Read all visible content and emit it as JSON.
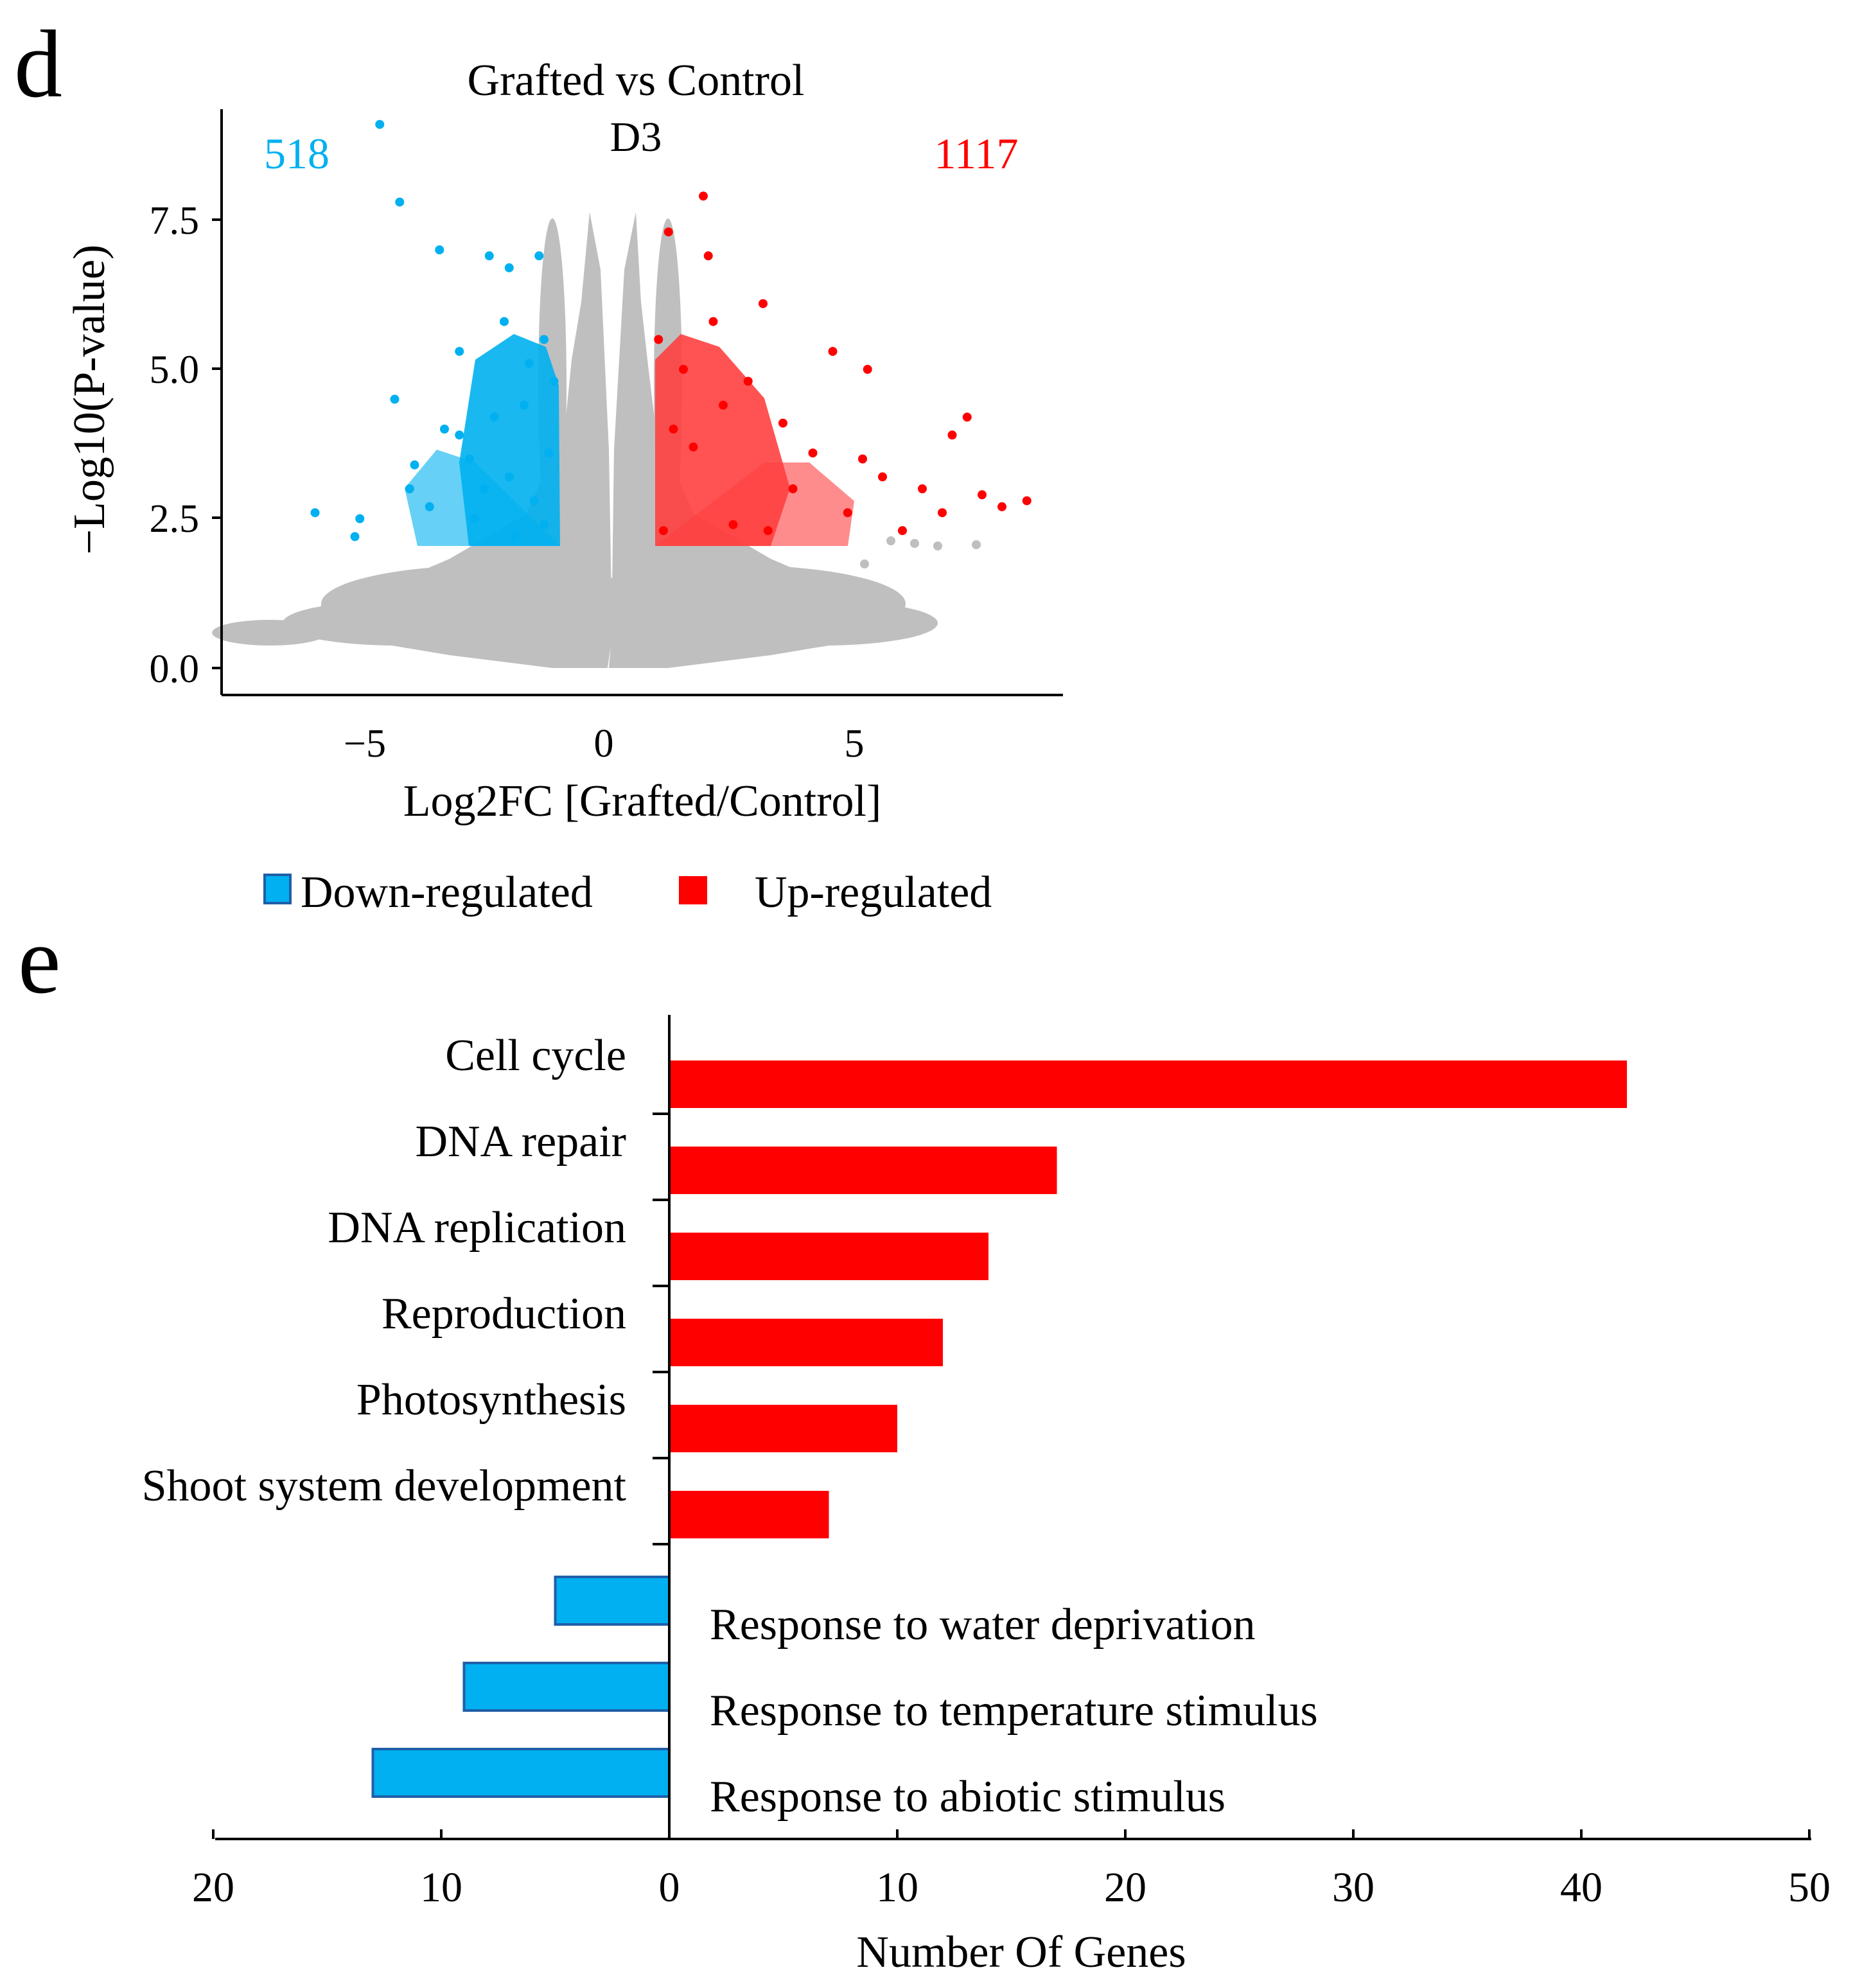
{
  "colors": {
    "down": "#00B0F0",
    "up": "#FF0000",
    "ns": "#BFBFBF",
    "axis": "#000000"
  },
  "chart_data": [
    {
      "panel_label": "d",
      "type": "scatter",
      "title": "Grafted vs Control",
      "subtitle": "D3",
      "xlabel": "Log2FC [Grafted/Control]",
      "ylabel": "−Log10(P-value)",
      "xlim": [
        -7.5,
        9.5
      ],
      "ylim": [
        -0.4,
        9.4
      ],
      "x_ticks": [
        "−5",
        "0",
        "5"
      ],
      "y_ticks": [
        "0.0",
        "2.5",
        "5.0",
        "7.5"
      ],
      "down_count_label": "518",
      "up_count_label": "1117",
      "legend": {
        "position": "bottom",
        "entries": [
          "Down-regulated",
          "Up-regulated"
        ]
      },
      "series": [
        {
          "name": "Down-regulated",
          "count": 518,
          "points": [
            [
              -4.5,
              9.1
            ],
            [
              -4.1,
              7.8
            ],
            [
              -3.3,
              7.0
            ],
            [
              -2.3,
              6.9
            ],
            [
              -1.3,
              6.9
            ],
            [
              -1.9,
              6.7
            ],
            [
              -2.9,
              5.3
            ],
            [
              -2.0,
              5.8
            ],
            [
              -4.2,
              4.5
            ],
            [
              -3.2,
              4.0
            ],
            [
              -1.6,
              4.4
            ],
            [
              -5.8,
              2.6
            ],
            [
              -4.9,
              2.5
            ],
            [
              -5.0,
              2.2
            ],
            [
              -3.5,
              2.7
            ],
            [
              -3.8,
              3.4
            ],
            [
              -2.7,
              3.5
            ],
            [
              -2.4,
              3.0
            ],
            [
              -1.9,
              3.2
            ],
            [
              -1.2,
              2.4
            ],
            [
              -1.1,
              3.6
            ],
            [
              -1.0,
              4.8
            ],
            [
              -1.5,
              5.1
            ],
            [
              -2.6,
              2.5
            ],
            [
              -3.9,
              3.0
            ],
            [
              -1.8,
              2.2
            ],
            [
              -1.4,
              2.8
            ],
            [
              -2.2,
              4.2
            ],
            [
              -2.9,
              3.9
            ],
            [
              -1.2,
              5.5
            ]
          ]
        },
        {
          "name": "Up-regulated",
          "count": 1117,
          "points": [
            [
              2.0,
              7.9
            ],
            [
              1.3,
              7.3
            ],
            [
              2.1,
              6.9
            ],
            [
              3.2,
              6.1
            ],
            [
              4.6,
              5.3
            ],
            [
              5.3,
              5.0
            ],
            [
              7.3,
              4.2
            ],
            [
              7.0,
              3.9
            ],
            [
              8.5,
              2.8
            ],
            [
              8.0,
              2.7
            ],
            [
              7.6,
              2.9
            ],
            [
              6.4,
              3.0
            ],
            [
              5.2,
              3.5
            ],
            [
              4.2,
              3.6
            ],
            [
              3.8,
              3.0
            ],
            [
              2.4,
              4.4
            ],
            [
              1.6,
              5.0
            ],
            [
              1.1,
              5.5
            ],
            [
              1.2,
              2.3
            ],
            [
              2.6,
              2.4
            ],
            [
              3.3,
              2.3
            ],
            [
              4.9,
              2.6
            ],
            [
              6.0,
              2.3
            ],
            [
              1.8,
              3.7
            ],
            [
              2.9,
              4.8
            ],
            [
              1.4,
              4.0
            ],
            [
              3.6,
              4.1
            ],
            [
              5.6,
              3.2
            ],
            [
              6.8,
              2.6
            ],
            [
              2.2,
              5.8
            ]
          ]
        }
      ]
    },
    {
      "panel_label": "e",
      "type": "bar",
      "orientation": "horizontal",
      "xlabel": "Number Of Genes",
      "xlim": [
        -20,
        50
      ],
      "x_ticks": [
        {
          "v": -20,
          "label": "20"
        },
        {
          "v": -10,
          "label": "10"
        },
        {
          "v": 0,
          "label": "0"
        },
        {
          "v": 10,
          "label": "10"
        },
        {
          "v": 20,
          "label": "20"
        },
        {
          "v": 30,
          "label": "30"
        },
        {
          "v": 40,
          "label": "40"
        },
        {
          "v": 50,
          "label": "50"
        }
      ],
      "categories": [
        {
          "label": "Cell cycle",
          "value": 42,
          "series": "Up-regulated"
        },
        {
          "label": "DNA repair",
          "value": 17,
          "series": "Up-regulated"
        },
        {
          "label": "DNA replication",
          "value": 14,
          "series": "Up-regulated"
        },
        {
          "label": "Reproduction",
          "value": 12,
          "series": "Up-regulated"
        },
        {
          "label": "Photosynthesis",
          "value": 10,
          "series": "Up-regulated"
        },
        {
          "label": "Shoot system development",
          "value": 7,
          "series": "Up-regulated"
        },
        {
          "label": "Response to water deprivation",
          "value": 5,
          "series": "Down-regulated"
        },
        {
          "label": "Response to temperature stimulus",
          "value": 9,
          "series": "Down-regulated"
        },
        {
          "label": "Response to abiotic stimulus",
          "value": 13,
          "series": "Down-regulated"
        }
      ]
    }
  ]
}
